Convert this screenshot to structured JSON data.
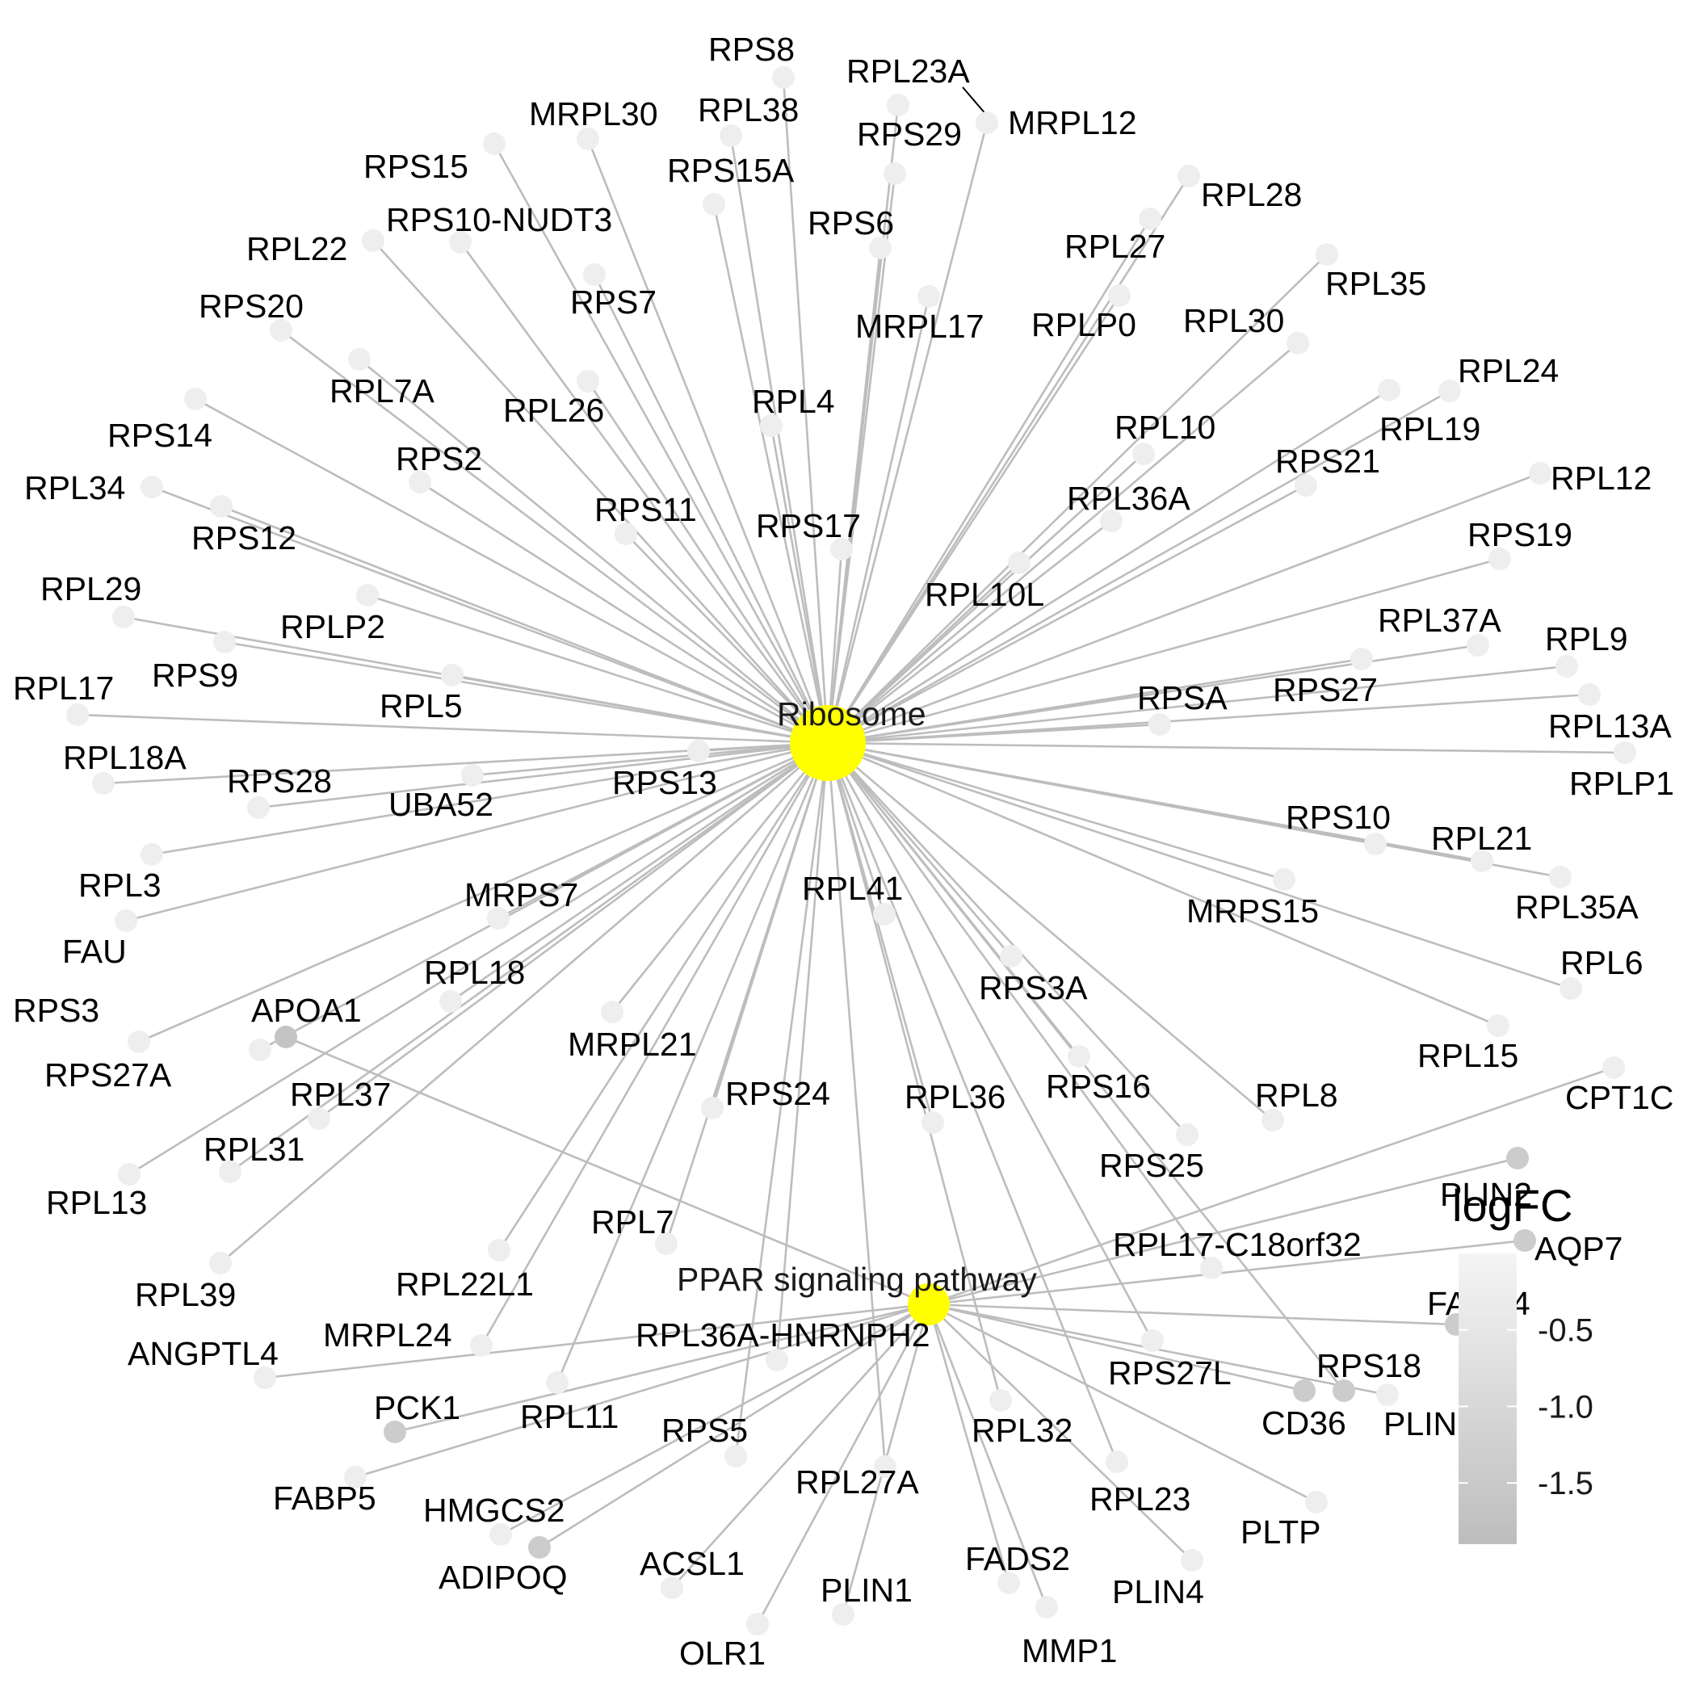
{
  "legend": {
    "title": "logFC",
    "ticks": [
      {
        "value": -0.5,
        "label": "-0.5"
      },
      {
        "value": -1.0,
        "label": "-1.0"
      },
      {
        "value": -1.5,
        "label": "-1.5"
      }
    ],
    "range": [
      -1.9,
      0.0
    ],
    "color_low": "#bdbdbd",
    "color_high": "#f5f5f5"
  },
  "colors": {
    "edge": "#bdbdbd",
    "hub": "#ffff00",
    "gene_default": "#eeeeee",
    "gene_apoa1": "#c4c4c4",
    "gene_dark": "#cccccc"
  },
  "hubs": [
    {
      "id": "ribosome",
      "label": "Ribosome"
    },
    {
      "id": "ppar",
      "label": "PPAR signaling pathway"
    }
  ],
  "genes": [
    {
      "label": "RPS8",
      "hub": "ribosome"
    },
    {
      "label": "RPL23A",
      "hub": "ribosome"
    },
    {
      "label": "MRPL12",
      "hub": "ribosome"
    },
    {
      "label": "RPL38",
      "hub": "ribosome"
    },
    {
      "label": "RPS29",
      "hub": "ribosome"
    },
    {
      "label": "MRPL30",
      "hub": "ribosome"
    },
    {
      "label": "RPS15",
      "hub": "ribosome"
    },
    {
      "label": "RPS15A",
      "hub": "ribosome"
    },
    {
      "label": "RPL28",
      "hub": "ribosome"
    },
    {
      "label": "RPS6",
      "hub": "ribosome"
    },
    {
      "label": "RPS10-NUDT3",
      "hub": "ribosome"
    },
    {
      "label": "RPL27",
      "hub": "ribosome"
    },
    {
      "label": "RPL22",
      "hub": "ribosome"
    },
    {
      "label": "RPL35",
      "hub": "ribosome"
    },
    {
      "label": "RPS7",
      "hub": "ribosome"
    },
    {
      "label": "RPS20",
      "hub": "ribosome"
    },
    {
      "label": "MRPL17",
      "hub": "ribosome"
    },
    {
      "label": "RPLP0",
      "hub": "ribosome"
    },
    {
      "label": "RPL30",
      "hub": "ribosome"
    },
    {
      "label": "RPL7A",
      "hub": "ribosome"
    },
    {
      "label": "RPL24",
      "hub": "ribosome"
    },
    {
      "label": "RPL4",
      "hub": "ribosome"
    },
    {
      "label": "RPL26",
      "hub": "ribosome"
    },
    {
      "label": "RPL19",
      "hub": "ribosome"
    },
    {
      "label": "RPS14",
      "hub": "ribosome"
    },
    {
      "label": "RPL10",
      "hub": "ribosome"
    },
    {
      "label": "RPS2",
      "hub": "ribosome"
    },
    {
      "label": "RPS21",
      "hub": "ribosome"
    },
    {
      "label": "RPL34",
      "hub": "ribosome"
    },
    {
      "label": "RPL12",
      "hub": "ribosome"
    },
    {
      "label": "RPL36A",
      "hub": "ribosome"
    },
    {
      "label": "RPS11",
      "hub": "ribosome"
    },
    {
      "label": "RPS17",
      "hub": "ribosome"
    },
    {
      "label": "RPS12",
      "hub": "ribosome"
    },
    {
      "label": "RPS19",
      "hub": "ribosome"
    },
    {
      "label": "RPL29",
      "hub": "ribosome"
    },
    {
      "label": "RPL10L",
      "hub": "ribosome"
    },
    {
      "label": "RPLP2",
      "hub": "ribosome"
    },
    {
      "label": "RPL37A",
      "hub": "ribosome"
    },
    {
      "label": "RPS9",
      "hub": "ribosome"
    },
    {
      "label": "RPL9",
      "hub": "ribosome"
    },
    {
      "label": "RPL17",
      "hub": "ribosome"
    },
    {
      "label": "RPS27",
      "hub": "ribosome"
    },
    {
      "label": "RPL5",
      "hub": "ribosome"
    },
    {
      "label": "RPSA",
      "hub": "ribosome"
    },
    {
      "label": "RPL13A",
      "hub": "ribosome"
    },
    {
      "label": "RPL18A",
      "hub": "ribosome"
    },
    {
      "label": "RPLP1",
      "hub": "ribosome"
    },
    {
      "label": "RPS28",
      "hub": "ribosome"
    },
    {
      "label": "RPS13",
      "hub": "ribosome"
    },
    {
      "label": "UBA52",
      "hub": "ribosome"
    },
    {
      "label": "RPS10",
      "hub": "ribosome"
    },
    {
      "label": "RPL21",
      "hub": "ribosome"
    },
    {
      "label": "RPL3",
      "hub": "ribosome"
    },
    {
      "label": "RPL41",
      "hub": "ribosome"
    },
    {
      "label": "RPL35A",
      "hub": "ribosome"
    },
    {
      "label": "MRPS7",
      "hub": "ribosome"
    },
    {
      "label": "MRPS15",
      "hub": "ribosome"
    },
    {
      "label": "FAU",
      "hub": "ribosome"
    },
    {
      "label": "RPL6",
      "hub": "ribosome"
    },
    {
      "label": "RPS3A",
      "hub": "ribosome"
    },
    {
      "label": "RPL18",
      "hub": "ribosome"
    },
    {
      "label": "RPS3",
      "hub": "ribosome"
    },
    {
      "label": "APOA1",
      "hub": "ppar"
    },
    {
      "label": "MRPL21",
      "hub": "ribosome"
    },
    {
      "label": "RPL15",
      "hub": "ribosome"
    },
    {
      "label": "RPS27A",
      "hub": "ribosome"
    },
    {
      "label": "RPS16",
      "hub": "ribosome"
    },
    {
      "label": "CPT1C",
      "hub": "ppar"
    },
    {
      "label": "RPL37",
      "hub": "ribosome"
    },
    {
      "label": "RPS24",
      "hub": "ribosome"
    },
    {
      "label": "RPL36",
      "hub": "ribosome"
    },
    {
      "label": "RPL8",
      "hub": "ribosome"
    },
    {
      "label": "RPL31",
      "hub": "ribosome"
    },
    {
      "label": "RPS25",
      "hub": "ribosome"
    },
    {
      "label": "RPL13",
      "hub": "ribosome"
    },
    {
      "label": "PLIN2",
      "hub": "ppar"
    },
    {
      "label": "RPL7",
      "hub": "ribosome"
    },
    {
      "label": "AQP7",
      "hub": "ppar"
    },
    {
      "label": "RPL17-C18orf32",
      "hub": "ribosome"
    },
    {
      "label": "RPL39",
      "hub": "ribosome"
    },
    {
      "label": "RPL22L1",
      "hub": "ribosome"
    },
    {
      "label": "FABP4",
      "hub": "ppar"
    },
    {
      "label": "MRPL24",
      "hub": "ribosome"
    },
    {
      "label": "RPL36A-HNRNPH2",
      "hub": "ribosome"
    },
    {
      "label": "ANGPTL4",
      "hub": "ppar"
    },
    {
      "label": "RPS27L",
      "hub": "ribosome"
    },
    {
      "label": "RPS18",
      "hub": "ribosome"
    },
    {
      "label": "PCK1",
      "hub": "ppar"
    },
    {
      "label": "RPL11",
      "hub": "ribosome"
    },
    {
      "label": "CD36",
      "hub": "ppar"
    },
    {
      "label": "PLIN5",
      "hub": "ppar"
    },
    {
      "label": "RPS5",
      "hub": "ribosome"
    },
    {
      "label": "RPL32",
      "hub": "ribosome"
    },
    {
      "label": "FABP5",
      "hub": "ppar"
    },
    {
      "label": "RPL27A",
      "hub": "ribosome"
    },
    {
      "label": "HMGCS2",
      "hub": "ppar"
    },
    {
      "label": "RPL23",
      "hub": "ribosome"
    },
    {
      "label": "PLTP",
      "hub": "ppar"
    },
    {
      "label": "ADIPOQ",
      "hub": "ppar"
    },
    {
      "label": "ACSL1",
      "hub": "ppar"
    },
    {
      "label": "FADS2",
      "hub": "ppar"
    },
    {
      "label": "PLIN4",
      "hub": "ppar"
    },
    {
      "label": "PLIN1",
      "hub": "ppar"
    },
    {
      "label": "OLR1",
      "hub": "ppar"
    },
    {
      "label": "MMP1",
      "hub": "ppar"
    }
  ]
}
